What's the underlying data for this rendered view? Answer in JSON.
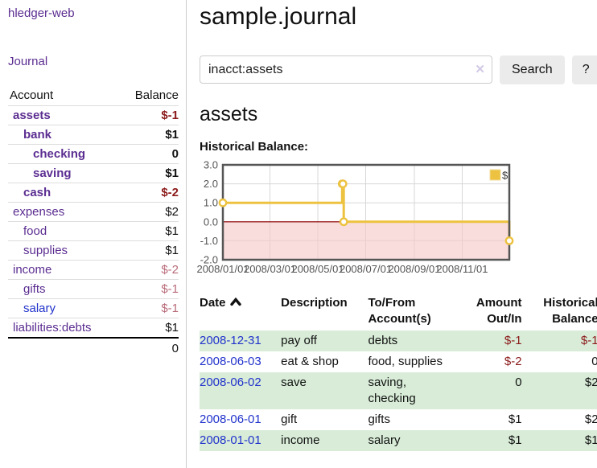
{
  "colors": {
    "link_purple": "#5b2d91",
    "link_blue": "#2233cc",
    "negative_strong": "#8b1a1a",
    "negative_soft": "#b86a78",
    "row_stripe_green": "#d8ecd8",
    "chart_line_gold": "#edc240",
    "chart_negative_fill": "#f5c8c8",
    "chart_zero_line": "#991f1f",
    "chart_grid": "#d7d7d7",
    "chart_border": "#555555"
  },
  "sidebar": {
    "brand": "hledger-web",
    "nav": {
      "journal": "Journal"
    },
    "accounts_table": {
      "header": {
        "account": "Account",
        "balance": "Balance"
      },
      "rows": [
        {
          "name": "assets",
          "balance": "$-1"
        },
        {
          "name": "bank",
          "balance": "$1"
        },
        {
          "name": "checking",
          "balance": "0"
        },
        {
          "name": "saving",
          "balance": "$1"
        },
        {
          "name": "cash",
          "balance": "$-2"
        },
        {
          "name": "expenses",
          "balance": "$2"
        },
        {
          "name": "food",
          "balance": "$1"
        },
        {
          "name": "supplies",
          "balance": "$1"
        },
        {
          "name": "income",
          "balance": "$-2"
        },
        {
          "name": "gifts",
          "balance": "$-1"
        },
        {
          "name": "salary",
          "balance": "$-1"
        },
        {
          "name": "liabilities:debts",
          "balance": "$1"
        }
      ],
      "total": "0"
    }
  },
  "main": {
    "title": "sample.journal",
    "search": {
      "value": "inacct:assets",
      "clear_icon": "✕",
      "search_button": "Search",
      "help_button": "?"
    },
    "account_heading": "assets",
    "chart_title": "Historical Balance:"
  },
  "chart_data": {
    "type": "line",
    "title": "Historical Balance",
    "step": true,
    "series": [
      {
        "name": "$",
        "points": [
          [
            "2008-01-01",
            1
          ],
          [
            "2008-06-01",
            2
          ],
          [
            "2008-06-02",
            2
          ],
          [
            "2008-06-03",
            0
          ],
          [
            "2008-12-31",
            -1
          ]
        ]
      }
    ],
    "x_domain": [
      "2008-01-01",
      "2008-12-31"
    ],
    "ylim": [
      -2,
      3
    ],
    "yticks": [
      3,
      2,
      1,
      0,
      -1,
      -2
    ],
    "ytick_labels": [
      "3.0",
      "2.0",
      "1.0",
      "0.0",
      "-1.0",
      "-2.0"
    ],
    "xticks": [
      "2008-01-01",
      "2008-03-01",
      "2008-05-01",
      "2008-07-01",
      "2008-09-01",
      "2008-11-01"
    ],
    "xtick_labels": [
      "2008/01/01",
      "2008/03/01",
      "2008/05/01",
      "2008/07/01",
      "2008/09/01",
      "2008/11/01"
    ],
    "legend": {
      "position": "top-right",
      "entries": [
        "$"
      ]
    },
    "grid": true,
    "negative_region_shaded": true
  },
  "register": {
    "headers": {
      "date": "Date",
      "description": "Description",
      "accounts": "To/From\nAccount(s)",
      "amount": "Amount\nOut/In",
      "balance": "Historical\nBalance"
    },
    "rows": [
      {
        "date": "2008-12-31",
        "description": "pay off",
        "accounts": "debts",
        "amount": "$-1",
        "balance": "$-1"
      },
      {
        "date": "2008-06-03",
        "description": "eat & shop",
        "accounts": "food, supplies",
        "amount": "$-2",
        "balance": "0"
      },
      {
        "date": "2008-06-02",
        "description": "save",
        "accounts": "saving,\nchecking",
        "amount": "0",
        "balance": "$2"
      },
      {
        "date": "2008-06-01",
        "description": "gift",
        "accounts": "gifts",
        "amount": "$1",
        "balance": "$2"
      },
      {
        "date": "2008-01-01",
        "description": "income",
        "accounts": "salary",
        "amount": "$1",
        "balance": "$1"
      }
    ]
  }
}
